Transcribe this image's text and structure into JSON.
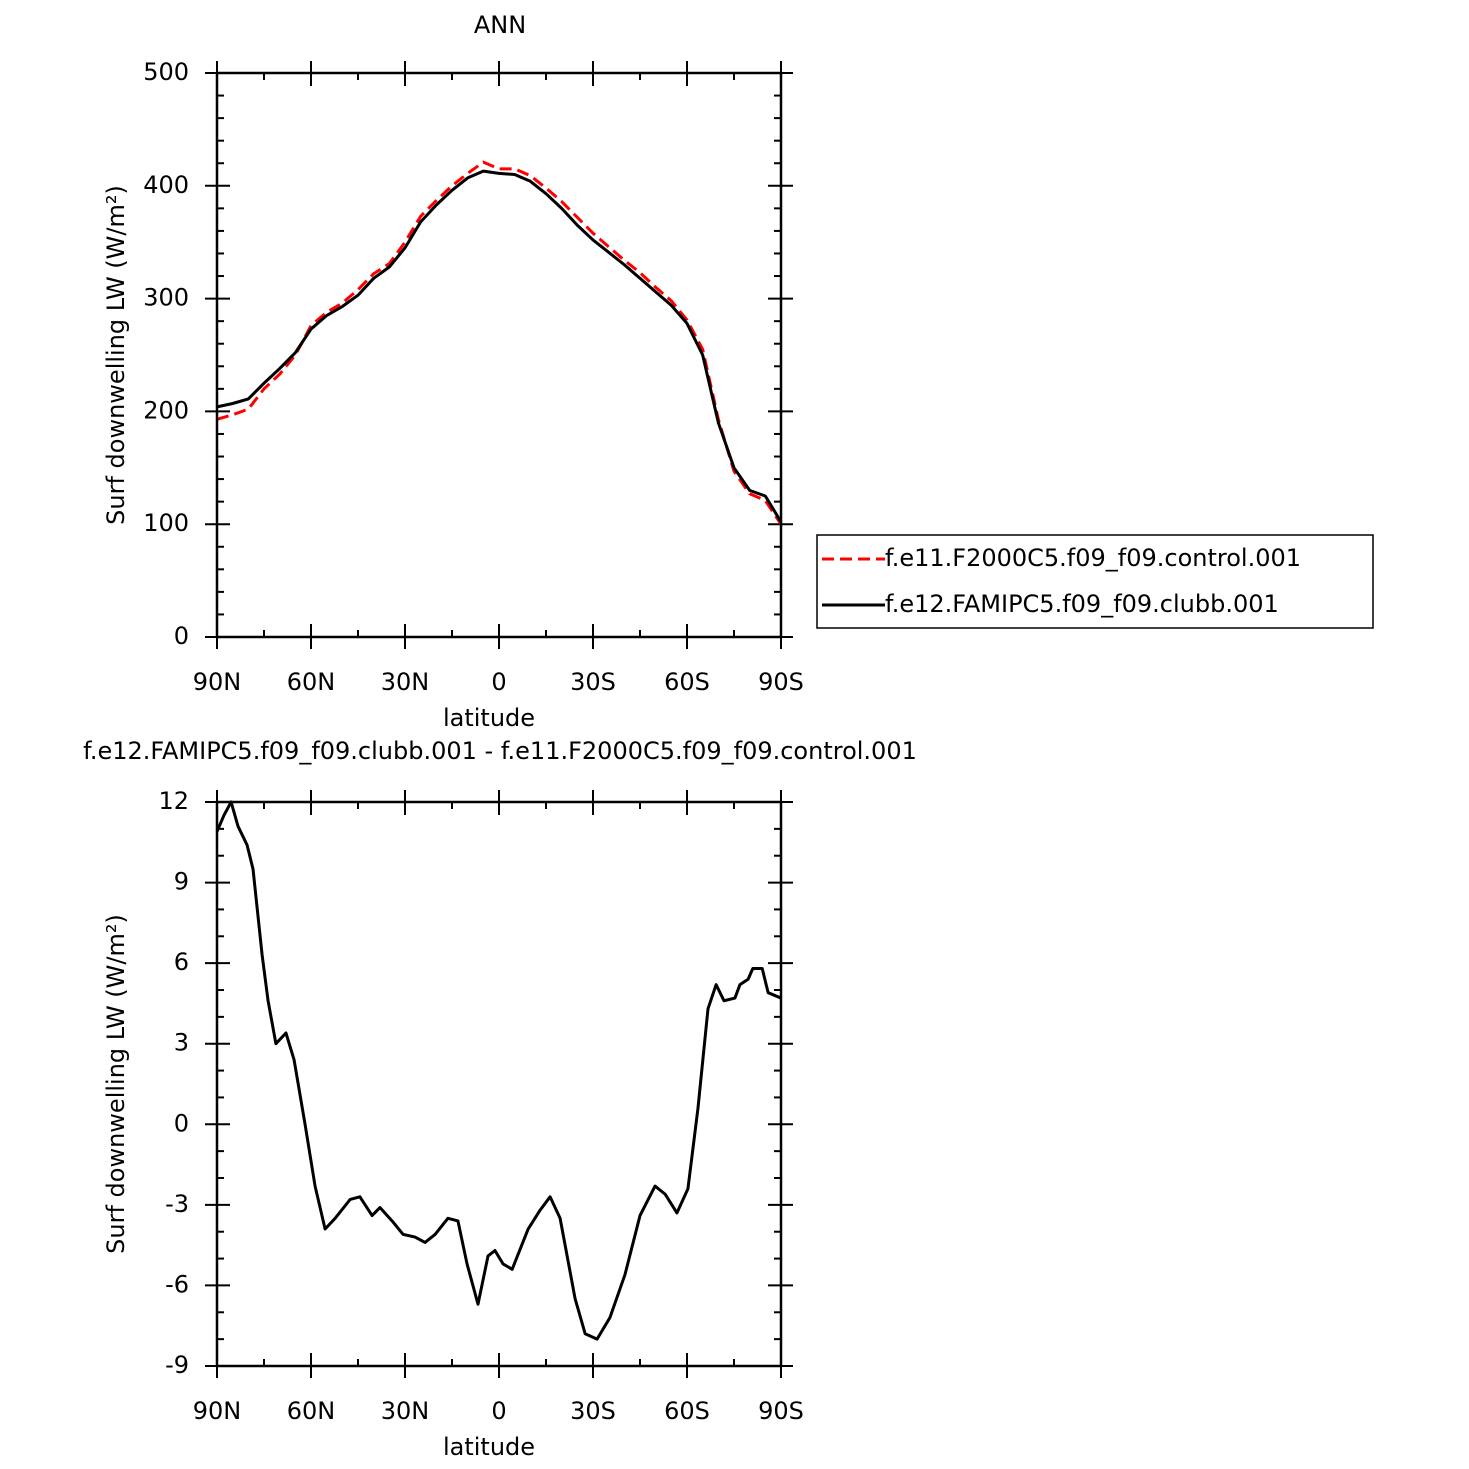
{
  "chart_data": [
    {
      "type": "line",
      "title": "ANN",
      "xlabel": "latitude",
      "ylabel": "Surf downwelling LW (W/m²)",
      "x": [
        90,
        85,
        80,
        75,
        70,
        65,
        60,
        55,
        50,
        45,
        40,
        35,
        30,
        25,
        20,
        15,
        10,
        5,
        0,
        -5,
        -10,
        -15,
        -20,
        -25,
        -30,
        -35,
        -40,
        -45,
        -50,
        -55,
        -60,
        -65,
        -70,
        -75,
        -80,
        -85,
        -90
      ],
      "series": [
        {
          "name": "f.e11.F2000C5.f09_f09.control.001",
          "color": "#ff0000",
          "line_style": "dashed",
          "values": [
            193,
            197,
            202,
            220,
            233,
            250,
            276,
            288,
            296,
            308,
            322,
            331,
            350,
            373,
            387,
            400,
            411,
            421,
            415,
            415,
            409,
            398,
            386,
            372,
            358,
            346,
            334,
            323,
            310,
            298,
            281,
            255,
            193,
            147,
            127,
            121,
            100
          ]
        },
        {
          "name": "f.e12.FAMIPC5.f09_f09.clubb.001",
          "color": "#000000",
          "line_style": "solid",
          "values": [
            204,
            207,
            211,
            225,
            238,
            252,
            273,
            285,
            293,
            303,
            318,
            328,
            345,
            368,
            383,
            396,
            407,
            413,
            411,
            410,
            404,
            393,
            380,
            365,
            352,
            341,
            330,
            318,
            306,
            294,
            278,
            250,
            190,
            150,
            130,
            125,
            102
          ]
        }
      ],
      "xlim": [
        90,
        -90
      ],
      "xticks": [
        {
          "value": 90,
          "label": "90N"
        },
        {
          "value": 60,
          "label": "60N"
        },
        {
          "value": 30,
          "label": "30N"
        },
        0,
        {
          "value": -30,
          "label": "30S"
        },
        {
          "value": -60,
          "label": "60S"
        },
        {
          "value": -90,
          "label": "90S"
        }
      ],
      "ylim": [
        0,
        500
      ],
      "yticks": [
        0,
        100,
        200,
        300,
        400,
        500
      ],
      "grid": false,
      "legend": "right"
    },
    {
      "type": "line",
      "title": "f.e12.FAMIPC5.f09_f09.clubb.001 - f.e11.F2000C5.f09_f09.control.001",
      "xlabel": "latitude",
      "ylabel": "Surf downwelling LW (W/m²)",
      "x": [
        90,
        87.8,
        85.5,
        83.3,
        80.4,
        78.5,
        75.6,
        73.7,
        71.2,
        68,
        65.4,
        61.9,
        58.7,
        55.5,
        52.3,
        47.5,
        44.4,
        40.5,
        38,
        34.1,
        30.6,
        26.8,
        23.6,
        20.4,
        16.3,
        13.1,
        10.2,
        6.7,
        3.5,
        1.3,
        -1.3,
        -4.2,
        -9.3,
        -13.1,
        -16.3,
        -19.5,
        -24.3,
        -27.5,
        -31.3,
        -35.4,
        -40.2,
        -45,
        -49.8,
        -53,
        -56.8,
        -60.3,
        -63.5,
        -66.7,
        -69.3,
        -71.8,
        -75.3,
        -76.9,
        -79.5,
        -81,
        -84,
        -85.9,
        -90
      ],
      "series": [
        {
          "name": null,
          "color": "#000000",
          "line_style": "solid",
          "values": [
            10.9,
            11.5,
            12.0,
            11.1,
            10.4,
            9.5,
            6.3,
            4.6,
            3.0,
            3.4,
            2.4,
            0.0,
            -2.3,
            -3.9,
            -3.5,
            -2.8,
            -2.7,
            -3.4,
            -3.1,
            -3.6,
            -4.1,
            -4.2,
            -4.4,
            -4.1,
            -3.5,
            -3.6,
            -5.2,
            -6.7,
            -4.9,
            -4.7,
            -5.2,
            -5.4,
            -3.9,
            -3.2,
            -2.7,
            -3.5,
            -6.5,
            -7.8,
            -8.0,
            -7.2,
            -5.6,
            -3.4,
            -2.3,
            -2.6,
            -3.3,
            -2.4,
            0.6,
            4.3,
            5.2,
            4.6,
            4.7,
            5.2,
            5.4,
            5.8,
            5.8,
            4.9,
            4.7
          ]
        }
      ],
      "xlim": [
        90,
        -90
      ],
      "xticks": [
        {
          "value": 90,
          "label": "90N"
        },
        {
          "value": 60,
          "label": "60N"
        },
        {
          "value": 30,
          "label": "30N"
        },
        0,
        {
          "value": -30,
          "label": "30S"
        },
        {
          "value": -60,
          "label": "60S"
        },
        {
          "value": -90,
          "label": "90S"
        }
      ],
      "ylim": [
        -9,
        12
      ],
      "yticks": [
        -9,
        -6,
        -3,
        0,
        3,
        6,
        9,
        12
      ],
      "grid": false
    }
  ]
}
